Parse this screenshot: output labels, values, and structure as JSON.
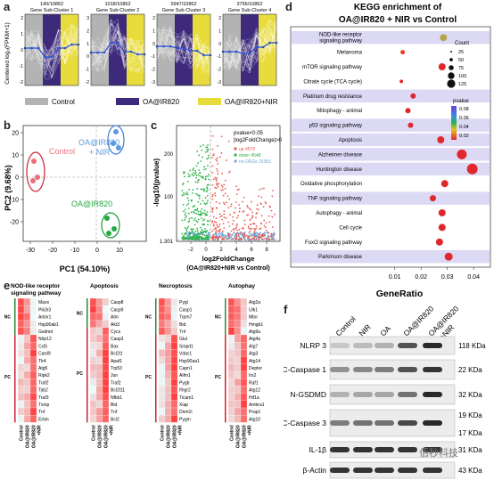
{
  "panel_labels": {
    "a": "a",
    "b": "b",
    "c": "c",
    "d": "d",
    "e": "e",
    "f": "f"
  },
  "panel_a": {
    "ylabel": "Centered log₂(FPKM+1)",
    "clusters": [
      {
        "count": "140/10862",
        "name": "Gene Sub-Cluster 1"
      },
      {
        "count": "1018/10862",
        "name": "Gene Sub-Cluster 2"
      },
      {
        "count": "5947/10862",
        "name": "Gene Sub-Cluster 3"
      },
      {
        "count": "3756/10862",
        "name": "Gene Sub-Cluster 4"
      }
    ],
    "yticks_c1": [
      "2",
      "1",
      "0",
      "-1",
      "-2"
    ],
    "yticks_c2": [
      "3",
      "2",
      "1",
      "0",
      "-1",
      "-2"
    ],
    "yticks_c3": [
      "2",
      "1",
      "0",
      "-1",
      "-2",
      "-3"
    ],
    "yticks_c4": [
      "2",
      "1",
      "0",
      "-1",
      "-2",
      "-3"
    ],
    "legend": [
      "Control",
      "OA@IR820",
      "OA@IR820+NIR"
    ],
    "colors": {
      "control": "#b3b3b3",
      "oa": "#3d2a7a",
      "nir": "#e8dc3c"
    }
  },
  "panel_b": {
    "xlabel": "PC1 (54.10%)",
    "ylabel": "PC2 (9.68%)",
    "xticks": [
      "-30",
      "-20",
      "-10",
      "0",
      "10"
    ],
    "yticks": [
      "20",
      "10",
      "0",
      "-10",
      "-20"
    ],
    "groups": [
      {
        "name": "Control",
        "color": "#e8707a"
      },
      {
        "name": "OA@IR820\n+ NIR",
        "color": "#5b9ae0"
      },
      {
        "name": "OA@IR820",
        "color": "#22aa44"
      }
    ],
    "group_labels": {
      "control": "Control",
      "nir1": "OA@IR820",
      "nir2": "+ NIR",
      "oa": "OA@IR820"
    }
  },
  "panel_c": {
    "ylabel": "-log10(pvalue)",
    "xlabel1": "log2FoldChange",
    "xlabel2": "(OA@IR820+NIR vs Control)",
    "xticks": [
      "-2",
      "0",
      "2",
      "4",
      "6",
      "8"
    ],
    "yticks": [
      "200",
      "100",
      "1.301"
    ],
    "legend_title1": "pvalue<0.05",
    "legend_title2": "|log2FoldChange|>0",
    "legend": [
      {
        "label": "up 4579",
        "color": "#e85a4f"
      },
      {
        "label": "down 4548",
        "color": "#2bb34a"
      },
      {
        "label": "no-DEGs 16383",
        "color": "#6fa8dc"
      }
    ]
  },
  "panel_d": {
    "title1": "KEGG enrichment of",
    "title2": "OA@IR820 + NIR vs Control",
    "xlabel": "GeneRatio",
    "xticks": [
      "0.01",
      "0.02",
      "0.03",
      "0.04"
    ],
    "terms": [
      "NOD-like receptor\nsignaling pathway",
      "Melanoma",
      "mTOR signaling pathway",
      "Citrate cycle (TCA cycle)",
      "Platinum drug resistance",
      "Mitophagy - animal",
      "p53 signaling pathway",
      "Apoptosis",
      "Alzheimer disease",
      "Huntington disease",
      "Oxidative phosphorylation",
      "TNF signaling pathway",
      "Autophagy - animal",
      "Cell cycle",
      "FoxO signaling pathway",
      "Parkinson disease"
    ],
    "term_lines": [
      [
        "NOD-like receptor",
        "signaling pathway"
      ],
      [
        "Melanoma"
      ],
      [
        "mTOR signaling pathway"
      ],
      [
        "Citrate cycle (TCA cycle)"
      ],
      [
        "Platinum drug resistance"
      ],
      [
        "Mitophagy - animal"
      ],
      [
        "p53 signaling pathway"
      ],
      [
        "Apoptosis"
      ],
      [
        "Alzheimer disease"
      ],
      [
        "Huntington disease"
      ],
      [
        "Oxidative phosphorylation"
      ],
      [
        "TNF signaling pathway"
      ],
      [
        "Autophagy - animal"
      ],
      [
        "Cell cycle"
      ],
      [
        "FoxO signaling pathway"
      ],
      [
        "Parkinson disease"
      ]
    ],
    "highlighted": [
      0,
      4,
      6,
      7,
      8,
      9,
      11,
      15
    ],
    "count_title": "Count",
    "count_labels": [
      "25",
      "50",
      "75",
      "100",
      "125"
    ],
    "pvalue_title": "pvalue",
    "pvalue_labels": [
      "0.08",
      "0.06",
      "0.04",
      "0.02"
    ]
  },
  "panel_e": {
    "blocks": [
      {
        "title": [
          "NOD-like receptor",
          "signaling pathway"
        ],
        "nc_genes": [
          "Mavs",
          "Pik3r3",
          "Antxr1",
          "Hsp90ab1",
          "Gsdmd"
        ],
        "pc_genes": [
          "Nlrp12",
          "Ccl5",
          "Card9",
          "Tlr4",
          "Atg5",
          "Ripk2",
          "Traf2",
          "Tab2",
          "Traf3",
          "Txnip",
          "Tnf",
          "Erbin"
        ]
      },
      {
        "title": [
          "Apoptosis"
        ],
        "nc_genes": [
          "Casp8",
          "Casp9",
          "Atm",
          "Akt3"
        ],
        "pc_genes": [
          "Cycs",
          "Casp3",
          "Bax",
          "Bcl2l1",
          "Apaf1",
          "Trp53",
          "Jun",
          "Traf2",
          "Bcl2l11",
          "Nfkb1",
          "Bid",
          "Tnf",
          "Bcl2"
        ]
      },
      {
        "title": [
          "Necroptosis"
        ],
        "nc_genes": [
          "Pygl",
          "Casp1",
          "Trpm7",
          "Bid",
          "Tnf"
        ],
        "pc_genes": [
          "Glul",
          "Smpd1",
          "Vdac1",
          "Hsp90aa1",
          "Capn1",
          "Aifm1",
          "Pygb",
          "Ifngr2",
          "Ticam1",
          "Xiap",
          "Dnm1l",
          "Pygm"
        ]
      },
      {
        "title": [
          "Autophay"
        ],
        "nc_genes": [
          "Atg2a",
          "Ulk1",
          "Mtor",
          "Hmgb1",
          "Atg9a"
        ],
        "pc_genes": [
          "Atg4a",
          "Atg7",
          "Atg3",
          "Atg14",
          "Deptor",
          "Irs2",
          "Raf1",
          "Atg12",
          "Hif1a",
          "Ambra1",
          "Prap1",
          "Atg10"
        ]
      }
    ],
    "nc": "NC",
    "pc": "PC",
    "xlabels": [
      "Control",
      "OA@IR820",
      "OA@IR820\n+NIR"
    ],
    "x1": "Control",
    "x2": "OA@IR820",
    "x3": "OA@IR820",
    "x3b": "+NIR"
  },
  "panel_f": {
    "columns": [
      "Control",
      "NIR",
      "OA",
      "OA@IR820",
      "OA@IR820",
      "+NIR"
    ],
    "col_labels": {
      "c1": "Control",
      "c2": "NIR",
      "c3": "OA",
      "c4": "OA@IR820",
      "c5a": "OA@IR820",
      "c5b": "+NIR"
    },
    "proteins": [
      "NLRP 3",
      "C-Caspase 1",
      "N-GSDMD",
      "C-Caspase 3",
      "IL-1β",
      "β-Actin"
    ],
    "sizes": [
      "118 KDa",
      "22 KDa",
      "32 KDa",
      "19 KDa",
      "17 KDa",
      "31 KDa",
      "43 KDa"
    ]
  },
  "watermark": "佰秒科技"
}
